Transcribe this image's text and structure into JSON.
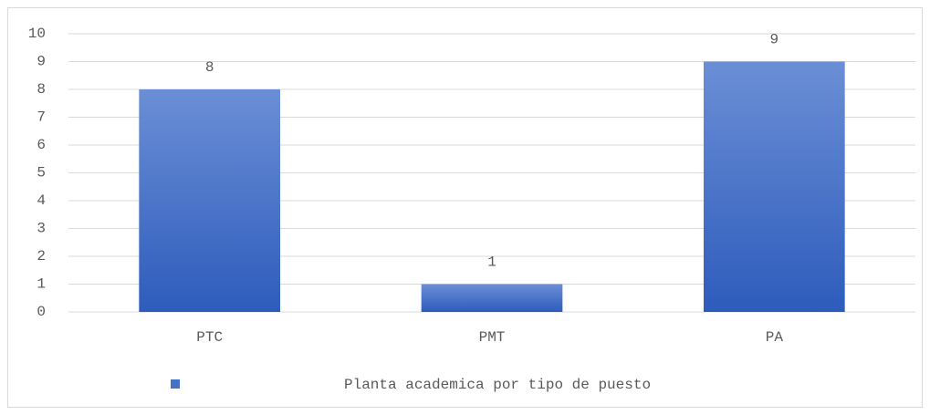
{
  "chart_data": {
    "type": "bar",
    "categories": [
      "PTC",
      "PMT",
      "PA"
    ],
    "series": [
      {
        "name": "Planta academica por tipo de puesto",
        "color": "#4472c4",
        "values": [
          8,
          1,
          9
        ]
      }
    ],
    "ylim": [
      0,
      10
    ],
    "yticks": [
      0,
      1,
      2,
      3,
      4,
      5,
      6,
      7,
      8,
      9,
      10
    ],
    "grid": true,
    "data_labels": true,
    "legend": "bottom"
  }
}
